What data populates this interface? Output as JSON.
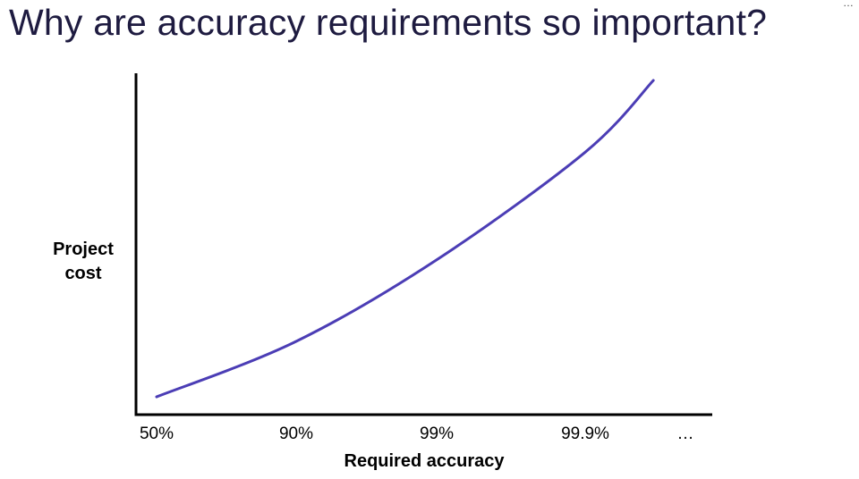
{
  "slide": {
    "title": "Why are accuracy requirements so important?"
  },
  "chart_data": {
    "type": "line",
    "title": "",
    "xlabel": "Required accuracy",
    "ylabel": "Project cost",
    "categories": [
      "50%",
      "90%",
      "99%",
      "99.9%",
      "…"
    ],
    "series": [
      {
        "values": [
          0.03,
          0.2,
          0.45,
          0.78,
          null
        ],
        "end_point": {
          "x_position": 3.68,
          "value": 1.0
        }
      }
    ],
    "ylim": [
      0,
      1
    ],
    "grid": false,
    "legend": "none",
    "line_color": "#4b3db5",
    "axis_color": "#000000"
  }
}
